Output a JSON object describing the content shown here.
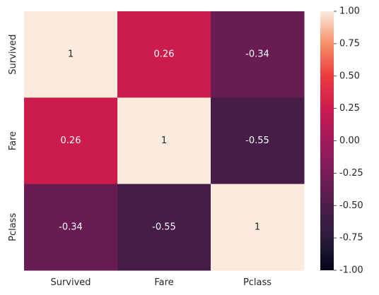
{
  "chart_data": {
    "type": "heatmap",
    "rows": [
      "Survived",
      "Fare",
      "Pclass"
    ],
    "columns": [
      "Survived",
      "Fare",
      "Pclass"
    ],
    "values": [
      [
        1,
        0.26,
        -0.34
      ],
      [
        0.26,
        1,
        -0.55
      ],
      [
        -0.34,
        -0.55,
        1
      ]
    ],
    "annotations": [
      [
        "1",
        "0.26",
        "-0.34"
      ],
      [
        "0.26",
        "1",
        "-0.55"
      ],
      [
        "-0.34",
        "-0.55",
        "1"
      ]
    ],
    "colorbar": {
      "min": -1.0,
      "max": 1.0,
      "ticks": [
        "1.00",
        "0.75",
        "0.50",
        "0.25",
        "0.00",
        "-0.25",
        "-0.50",
        "-0.75",
        "-1.00"
      ],
      "tick_values": [
        1.0,
        0.75,
        0.5,
        0.25,
        0.0,
        -0.25,
        -0.5,
        -0.75,
        -1.0
      ],
      "colormap": "rocket"
    }
  }
}
